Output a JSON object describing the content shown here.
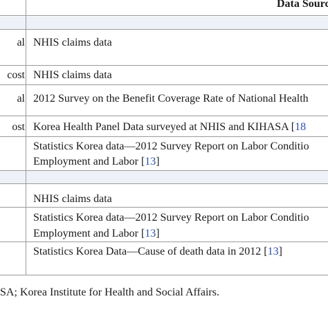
{
  "header": {
    "data_source": "Data Source"
  },
  "rows": [
    {
      "left": "al",
      "source": "NHIS claims data"
    },
    {
      "left": "cost",
      "source": "NHIS claims data"
    },
    {
      "left": "al",
      "source": "2012 Survey on the Benefit Coverage Rate of National Health"
    },
    {
      "left": "ost",
      "source_text": "Korea Health Panel Data surveyed at NHIS and KIHASA [",
      "source_ref": "18"
    },
    {
      "line1": "Statistics Korea data—2012 Survey Report on Labor Conditio",
      "line2_text": "Employment and Labor [",
      "line2_ref": "13",
      "line2_end": "]"
    },
    {
      "source": "NHIS claims data"
    },
    {
      "line1": "Statistics Korea data—2012 Survey Report on Labor Conditio",
      "line2_text": "Employment and Labor [",
      "line2_ref": "13",
      "line2_end": "]"
    },
    {
      "source_text": "Statistics Korea Data—Cause of death data in 2012 [",
      "source_ref": "13",
      "source_end": "]"
    }
  ],
  "footnote": "SA; Korea Institute for Health and Social Affairs."
}
